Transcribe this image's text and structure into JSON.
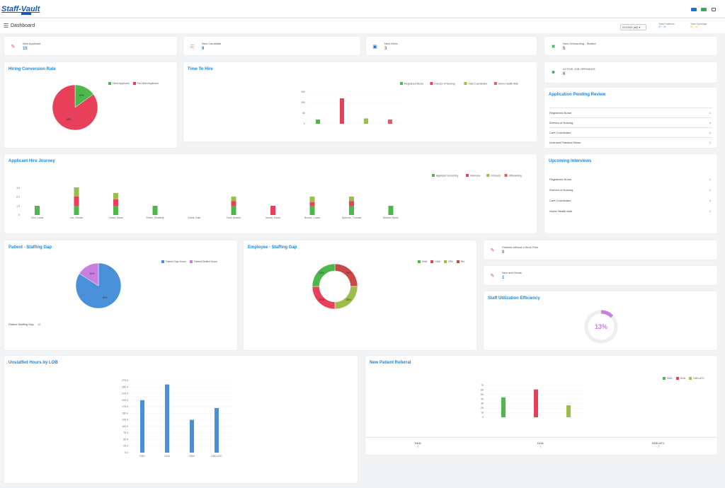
{
  "header": {
    "logo": "Staff-Vault"
  },
  "subheader": {
    "title": "Dashboard",
    "period_select": "01/2024 (all)",
    "stats": [
      {
        "label": "Total Positions",
        "value": "47 · 11"
      },
      {
        "label": "Total Openings",
        "value": "47 · 11"
      }
    ]
  },
  "metrics": {
    "new_applicant": {
      "label": "New Applicant",
      "value": "15"
    },
    "new_candidate": {
      "label": "New Candidate",
      "value": "9"
    },
    "new_hires": {
      "label": "New Hires",
      "value": "3"
    },
    "new_onboarding": {
      "label": "New Onboarding - Started",
      "value": "5"
    },
    "active_job_openings": {
      "label": "ACTIVE JOB OPENINGS",
      "value": "6"
    },
    "patients_without_visit": {
      "label": "Patients without a Work Plan",
      "value": "0"
    },
    "new_grads": {
      "label": "New and Grads",
      "value": "1"
    }
  },
  "colors": {
    "green": "#4cb84c",
    "red": "#e8405a",
    "olive": "#9bbd4a",
    "pink": "#e85a66",
    "blue": "#4a90d9",
    "purple": "#c77fe0",
    "title_blue": "#1f84d8"
  },
  "hiring_conversion": {
    "title": "Hiring Conversion Rate",
    "chart_data": {
      "type": "pie",
      "labels": [
        "Hired Applicant",
        "Pre-Hired Applicant"
      ],
      "values": [
        15,
        85
      ],
      "slice_labels": [
        "15%",
        "85%"
      ]
    }
  },
  "time_to_hire": {
    "title": "Time To Hire",
    "chart_data": {
      "type": "bar",
      "categories": [
        "Registered Nurse",
        "Director of Nursing",
        "Care Coordinator",
        "Home Health Aide"
      ],
      "values": [
        20,
        120,
        25,
        20
      ],
      "ylim": [
        0,
        150
      ],
      "yticks": [
        "150",
        "100",
        "50",
        "0"
      ],
      "legend": [
        "Registered Nurse",
        "Director of Nursing",
        "Care Coordinator",
        "Home Health Aide"
      ]
    }
  },
  "applicant_journey": {
    "title": "Applicant Hire Journey",
    "chart_data": {
      "type": "bar",
      "stacked": true,
      "categories": [
        "Chin Lucas",
        "Lee, Denise",
        "Carter, Maria",
        "Perez, Kimberly",
        "Davis, Kate",
        "Ford, Amelia",
        "Moore, Kayla",
        "Brooks, Lucas",
        "Spencer, Thomas",
        "Bullard Hynes"
      ],
      "yticks": [
        "3.5",
        "2.2",
        "1.5",
        "0"
      ],
      "series": [
        {
          "name": "Applicant Screening",
          "values": [
            1,
            1,
            1,
            1,
            0,
            1,
            0,
            1,
            1,
            1
          ]
        },
        {
          "name": "Interview",
          "values": [
            0,
            1,
            0.7,
            0,
            0,
            0.5,
            1,
            0.4,
            0.5,
            0
          ]
        },
        {
          "name": "Onboard",
          "values": [
            0,
            1,
            0.7,
            0,
            0,
            0.5,
            0,
            0.6,
            0.5,
            0
          ]
        },
        {
          "name": "Offboarding",
          "values": [
            0,
            0,
            0,
            0,
            0,
            0,
            0,
            0,
            0,
            0
          ]
        }
      ]
    }
  },
  "pending_review": {
    "title": "Application Pending Review",
    "rows": [
      {
        "label": "Registered Nurse",
        "value": "1"
      },
      {
        "label": "Director of Nursing",
        "value": "4"
      },
      {
        "label": "Care Coordinator",
        "value": "1"
      },
      {
        "label": "Licensed Practical Nurse",
        "value": "1"
      }
    ]
  },
  "upcoming_interviews": {
    "title": "Upcoming Interviews",
    "rows": [
      {
        "label": "Registered Nurse",
        "value": "1"
      },
      {
        "label": "Director of Nursing",
        "value": "1"
      },
      {
        "label": "Care Coordinator",
        "value": "2"
      },
      {
        "label": "Home Health Aide",
        "value": "1"
      }
    ]
  },
  "patient_staffing_gap": {
    "title": "Patient - Staffing Gap",
    "footer_label": "Patient Staffing Gap",
    "footer_value": "10",
    "chart_data": {
      "type": "pie",
      "labels": [
        "Patient Gap Hours",
        "Patient Staffed Hours"
      ],
      "values": [
        84,
        16
      ],
      "slice_labels": [
        "84%",
        "16%"
      ]
    }
  },
  "employee_staffing_gap": {
    "title": "Employee - Staffing Gap",
    "chart_data": {
      "type": "pie",
      "donut": true,
      "labels": [
        "HHA",
        "CNA",
        "LPN",
        "RN"
      ],
      "values": [
        25,
        25,
        25,
        25
      ],
      "slice_labels": [
        "25%",
        "25%",
        "25%",
        "25%"
      ]
    }
  },
  "staff_utilization": {
    "title": "Staff Utilization Efficiency",
    "value": "13%",
    "fraction": 0.13
  },
  "unstaffed_hours": {
    "title": "Unstaffed Hours by LOB",
    "chart_data": {
      "type": "bar",
      "categories": [
        "DDD",
        "DOA",
        "ODA",
        "DDD-ATC"
      ],
      "values": [
        200,
        260,
        125,
        170
      ],
      "ylim": [
        0,
        275
      ],
      "yticks": [
        "275.4",
        "250.4",
        "225.4",
        "200.4",
        "175.4",
        "150.4",
        "125.4",
        "100.4",
        "75.4",
        "50.4",
        "25.4",
        "0.4"
      ]
    }
  },
  "new_patient_referral": {
    "title": "New Patient Referral",
    "chart_data": {
      "type": "bar",
      "categories": [
        "DDD",
        "DOA",
        "DDD-ATC"
      ],
      "values": [
        50,
        70,
        30
      ],
      "ylim": [
        0,
        80
      ],
      "yticks": [
        "70",
        "60",
        "50",
        "40",
        "30",
        "20",
        "10",
        "0"
      ],
      "legend": [
        "DDD",
        "DOA",
        "DDD-ATC"
      ]
    },
    "footer": [
      {
        "label": "DDD",
        "value": "7"
      },
      {
        "label": "DOA",
        "value": "7"
      },
      {
        "label": "DDD-ATC",
        "value": "7"
      }
    ]
  }
}
